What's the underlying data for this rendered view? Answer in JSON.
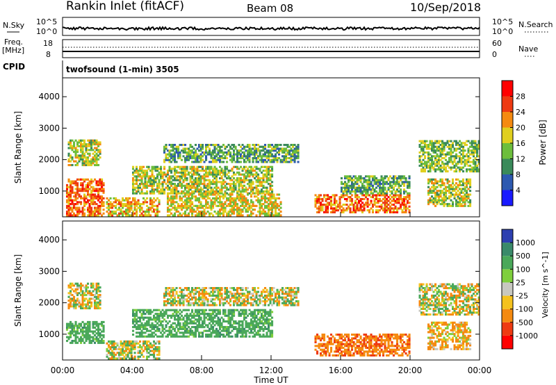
{
  "header": {
    "title": "Rankin Inlet (fitACF)",
    "beam": "Beam 08",
    "date": "10/Sep/2018"
  },
  "top_panels": {
    "nsky_label": "N.Sky",
    "nsky_ticks": [
      "10^5",
      "10^0"
    ],
    "nsearch_label": "N.Search",
    "freq_label_line1": "Freq.",
    "freq_label_line2": "[MHz]",
    "freq_ticks": [
      "18",
      "8"
    ],
    "nave_label": "Nave",
    "nave_ticks": [
      "60",
      "0"
    ],
    "cpid_label": "CPID",
    "cpid_value": "twofsound (1-min) 3505"
  },
  "chart_data": [
    {
      "type": "heatmap",
      "title": "",
      "xlabel": "Time UT",
      "ylabel": "Slant Range [km]",
      "x_ticks": [
        "00:00",
        "04:00",
        "08:00",
        "12:00",
        "16:00",
        "20:00",
        "00:00"
      ],
      "y_ticks": [
        1000,
        2000,
        3000,
        4000
      ],
      "xlim_hours": [
        0,
        24
      ],
      "ylim_km": [
        180,
        4600
      ],
      "colorbar_label": "Power [dB]",
      "colorbar_ticks": [
        "4",
        "8",
        "12",
        "16",
        "20",
        "24",
        "28"
      ],
      "colorscale": [
        "#1a1aff",
        "#2d59b0",
        "#3a8a5a",
        "#6dbe3c",
        "#e0cf1e",
        "#f58a10",
        "#ee3a12",
        "#ff0000"
      ],
      "echo_regions": [
        {
          "t0": 0.2,
          "t1": 2.4,
          "r0": 200,
          "r1": 1400,
          "v": 24
        },
        {
          "t0": 0.3,
          "t1": 2.2,
          "r0": 1800,
          "r1": 2600,
          "v": 16
        },
        {
          "t0": 2.5,
          "t1": 5.5,
          "r0": 200,
          "r1": 800,
          "v": 20
        },
        {
          "t0": 4.0,
          "t1": 12.0,
          "r0": 900,
          "r1": 1800,
          "v": 16
        },
        {
          "t0": 5.8,
          "t1": 13.5,
          "r0": 1900,
          "r1": 2500,
          "v": 12
        },
        {
          "t0": 6.0,
          "t1": 12.5,
          "r0": 200,
          "r1": 900,
          "v": 18
        },
        {
          "t0": 14.5,
          "t1": 20.0,
          "r0": 300,
          "r1": 900,
          "v": 24
        },
        {
          "t0": 16.0,
          "t1": 20.0,
          "r0": 900,
          "r1": 1500,
          "v": 12
        },
        {
          "t0": 20.5,
          "t1": 24.0,
          "r0": 1600,
          "r1": 2600,
          "v": 14
        },
        {
          "t0": 21.0,
          "t1": 23.5,
          "r0": 500,
          "r1": 1400,
          "v": 16
        }
      ]
    },
    {
      "type": "heatmap",
      "title": "",
      "xlabel": "Time UT",
      "ylabel": "Slant Range [km]",
      "x_ticks": [
        "00:00",
        "04:00",
        "08:00",
        "12:00",
        "16:00",
        "20:00",
        "00:00"
      ],
      "y_ticks": [
        1000,
        2000,
        3000,
        4000
      ],
      "xlim_hours": [
        0,
        24
      ],
      "ylim_km": [
        180,
        4600
      ],
      "colorbar_label": "Velocity [m s^-1]",
      "colorbar_ticks": [
        "1000",
        "500",
        "100",
        "25",
        "-25",
        "-100",
        "-500",
        "-1000"
      ],
      "colorscale": [
        "#2d3fb0",
        "#3a8a6a",
        "#4aa85a",
        "#7fcf3c",
        "#c8c8c0",
        "#f5c21e",
        "#f58a10",
        "#ee3a12",
        "#ff0000"
      ],
      "echo_regions": [
        {
          "t0": 0.2,
          "t1": 2.4,
          "r0": 700,
          "r1": 1400,
          "v": 300
        },
        {
          "t0": 0.3,
          "t1": 2.2,
          "r0": 1800,
          "r1": 2600,
          "v": 0
        },
        {
          "t0": 2.5,
          "t1": 5.5,
          "r0": 200,
          "r1": 800,
          "v": 50
        },
        {
          "t0": 4.0,
          "t1": 12.0,
          "r0": 900,
          "r1": 1800,
          "v": 300
        },
        {
          "t0": 5.8,
          "t1": 13.5,
          "r0": 1900,
          "r1": 2500,
          "v": 0
        },
        {
          "t0": 14.5,
          "t1": 20.0,
          "r0": 300,
          "r1": 1000,
          "v": -400
        },
        {
          "t0": 20.5,
          "t1": 24.0,
          "r0": 1600,
          "r1": 2600,
          "v": 0
        },
        {
          "t0": 21.0,
          "t1": 23.5,
          "r0": 500,
          "r1": 1400,
          "v": -150
        }
      ]
    }
  ]
}
